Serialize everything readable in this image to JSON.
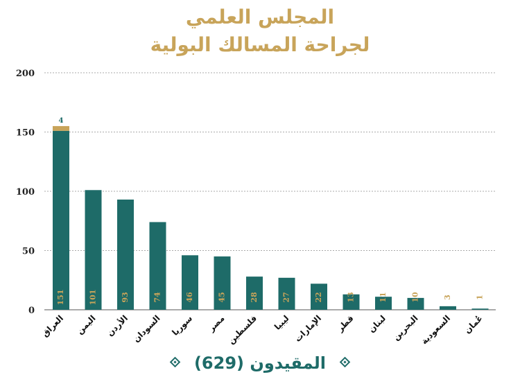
{
  "title_line1": "المجلس العلمي",
  "title_line2": "لجراحة المسالك البولية",
  "footer": "المقيدون (629)",
  "colors": {
    "bar": "#1e6b68",
    "accent": "#c8a45a",
    "grid": "#aaaaaa"
  },
  "chart_data": {
    "type": "bar",
    "title": "المجلس العلمي لجراحة المسالك البولية",
    "categories": [
      "العراق",
      "اليمن",
      "الأردن",
      "السودان",
      "سوريا",
      "مصر",
      "فلسطين",
      "ليبيا",
      "الإمارات",
      "قطر",
      "لبنان",
      "البحرين",
      "السعودية",
      "عُمان"
    ],
    "series": [
      {
        "values": [
          151,
          101,
          93,
          74,
          46,
          45,
          28,
          27,
          22,
          13,
          11,
          10,
          3,
          1
        ]
      },
      {
        "values": [
          4,
          0,
          0,
          0,
          0,
          0,
          0,
          0,
          0,
          0,
          0,
          0,
          0,
          0
        ]
      }
    ],
    "value_labels": [
      "151",
      "101",
      "93",
      "74",
      "46",
      "45",
      "28",
      "27",
      "22",
      "13",
      "11",
      "10",
      "3",
      "1"
    ],
    "stack_labels": [
      "4",
      "",
      "",
      "",
      "",
      "",
      "",
      "",
      "",
      "",
      "",
      "",
      "",
      ""
    ],
    "yticks": [
      0,
      50,
      100,
      150,
      200
    ],
    "ylim": [
      0,
      200
    ],
    "grid": true,
    "legend": "none"
  }
}
